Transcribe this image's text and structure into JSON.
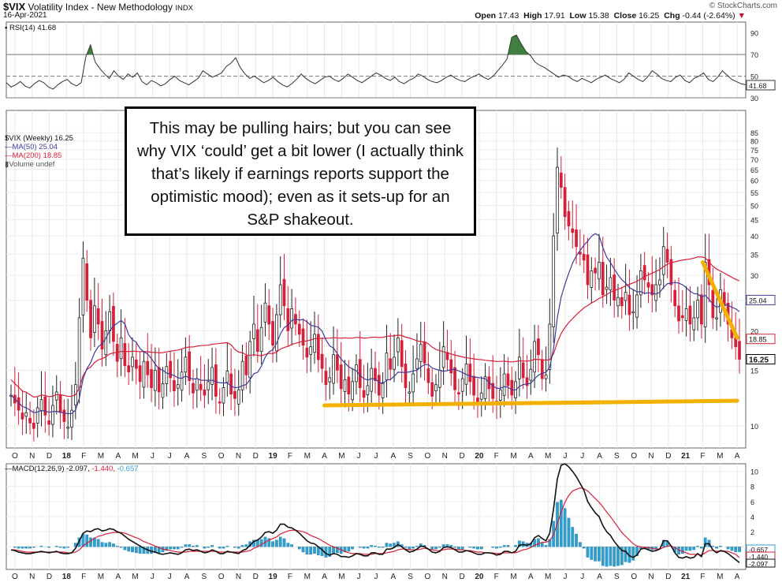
{
  "header": {
    "symbol": "$VIX",
    "name": "Volatility Index - New Methodology",
    "exchange": "INDX",
    "date": "16-Apr-2021",
    "brand": "© StockCharts.com",
    "open_label": "Open",
    "open": "17.43",
    "high_label": "High",
    "high": "17.91",
    "low_label": "Low",
    "low": "15.38",
    "close_label": "Close",
    "close": "16.25",
    "chg_label": "Chg",
    "chg": "-0.44 (-2.64%)",
    "colors": {
      "up": "#222222",
      "down": "#d6203a",
      "ma50": "#3c3ca0",
      "ma200": "#d6203a",
      "trend": "#f2b000",
      "rsi_fill": "#3f7f3f",
      "macd_hist": "#2f9fcf"
    }
  },
  "legends": {
    "rsi": "RSI(14) 41.68",
    "price": "$VIX (Weekly) 16.25",
    "ma50": "MA(50) 25.04",
    "ma200": "MA(200) 18.85",
    "volume": "Volume undef",
    "macd_prefix": "MACD(12,26,9)",
    "macd_v1": "-2.097,",
    "macd_v2": "-1.440,",
    "macd_v3": "-0.657"
  },
  "annotation": {
    "text": "This may be pulling hairs; but you can see why VIX ‘could’ get a bit lower (I actually think that’s likely if earnings reports support the optimistic mood); even as it sets-up for an S&P shakeout."
  },
  "chart_data": [
    {
      "type": "line",
      "panel": "rsi",
      "title": "RSI(14) 41.68",
      "ylim": [
        30,
        100
      ],
      "y_ticks": [
        "90",
        "70",
        "50",
        "30"
      ],
      "last_value": "41.68",
      "levels": [
        70,
        50,
        30
      ],
      "series": [
        {
          "values": [
            44,
            40,
            42,
            45,
            41,
            39,
            43,
            46,
            44,
            40,
            38,
            42,
            45,
            47,
            43,
            41,
            44,
            68,
            79,
            63,
            57,
            52,
            48,
            55,
            50,
            47,
            52,
            49,
            53,
            45,
            42,
            46,
            44,
            41,
            43,
            47,
            50,
            46,
            44,
            42,
            45,
            48,
            55,
            52,
            49,
            51,
            53,
            59,
            62,
            67,
            58,
            52,
            48,
            50,
            47,
            44,
            46,
            49,
            45,
            42,
            40,
            43,
            47,
            52,
            48,
            45,
            43,
            46,
            49,
            50,
            47,
            45,
            48,
            52,
            49,
            46,
            44,
            47,
            50,
            53,
            51,
            48,
            46,
            49,
            45,
            43,
            46,
            48,
            52,
            50,
            47,
            45,
            44,
            46,
            49,
            51,
            48,
            46,
            45,
            48,
            50,
            52,
            49,
            47,
            50,
            55,
            60,
            66,
            86,
            88,
            80,
            73,
            69,
            63,
            60,
            58,
            55,
            52,
            49,
            51,
            50,
            47,
            45,
            48,
            46,
            44,
            47,
            49,
            51,
            48,
            46,
            44,
            47,
            53,
            50,
            47,
            45,
            49,
            55,
            52,
            48,
            46,
            45,
            49,
            51,
            46,
            44,
            48,
            50,
            53,
            47,
            45,
            49,
            55,
            51,
            47,
            45,
            43,
            42
          ]
        }
      ]
    },
    {
      "type": "candlestick",
      "panel": "price",
      "title": "$VIX (Weekly) 16.25",
      "y_scale": "log",
      "ylim": [
        8.5,
        100
      ],
      "y_ticks": [
        "10",
        "15",
        "20",
        "25",
        "30",
        "35",
        "40",
        "45",
        "50",
        "55",
        "60",
        "65",
        "70",
        "75",
        "80",
        "85"
      ],
      "x_ticks": [
        "O",
        "N",
        "D",
        "18",
        "F",
        "M",
        "A",
        "M",
        "J",
        "J",
        "A",
        "S",
        "O",
        "N",
        "D",
        "19",
        "F",
        "M",
        "A",
        "M",
        "J",
        "J",
        "A",
        "S",
        "O",
        "N",
        "D",
        "20",
        "F",
        "M",
        "A",
        "M",
        "J",
        "J",
        "A",
        "S",
        "O",
        "N",
        "D",
        "21",
        "F",
        "M",
        "A"
      ],
      "close_series": [
        12.5,
        11.8,
        11.2,
        10.5,
        11.0,
        10.2,
        9.8,
        11.4,
        12.1,
        10.8,
        10.1,
        11.6,
        12.8,
        11.0,
        10.3,
        9.9,
        11.2,
        13.5,
        22.0,
        34.0,
        25.0,
        19.0,
        24.0,
        21.0,
        17.5,
        20.0,
        23.0,
        18.5,
        16.0,
        19.0,
        15.5,
        14.8,
        16.5,
        15.2,
        13.8,
        16.0,
        14.5,
        13.2,
        15.0,
        12.8,
        13.6,
        15.4,
        14.2,
        12.9,
        13.5,
        14.8,
        16.5,
        13.9,
        12.7,
        14.1,
        13.0,
        12.5,
        13.8,
        15.3,
        12.4,
        11.8,
        13.2,
        14.9,
        12.6,
        12.2,
        13.0,
        16.0,
        14.5,
        18.5,
        21.0,
        17.2,
        20.5,
        24.5,
        21.0,
        18.0,
        22.5,
        28.0,
        24.0,
        20.0,
        23.5,
        21.0,
        19.5,
        18.0,
        16.5,
        17.8,
        19.5,
        16.2,
        15.2,
        13.5,
        14.2,
        16.8,
        15.0,
        13.1,
        14.0,
        12.6,
        13.8,
        15.6,
        13.2,
        12.3,
        13.4,
        15.2,
        13.9,
        12.5,
        13.7,
        17.0,
        15.1,
        16.5,
        19.0,
        15.4,
        13.2,
        12.8,
        14.6,
        16.3,
        18.1,
        15.8,
        13.7,
        12.4,
        13.5,
        15.0,
        17.8,
        16.2,
        14.7,
        13.0,
        12.6,
        14.1,
        15.7,
        13.8,
        12.5,
        11.9,
        12.7,
        14.3,
        13.1,
        12.2,
        11.8,
        13.0,
        14.6,
        13.4,
        12.5,
        13.8,
        16.5,
        14.2,
        13.4,
        15.1,
        18.5,
        16.8,
        14.1,
        14.5,
        21.0,
        40.0,
        66.0,
        57.0,
        46.0,
        43.0,
        41.0,
        37.0,
        35.0,
        33.5,
        28.0,
        31.0,
        30.5,
        33.0,
        26.0,
        27.5,
        29.5,
        25.0,
        25.5,
        24.0,
        26.5,
        22.5,
        23.0,
        26.0,
        31.0,
        29.0,
        27.5,
        26.0,
        28.0,
        29.0,
        37.0,
        33.0,
        28.0,
        24.0,
        21.5,
        22.0,
        23.5,
        21.0,
        22.0,
        25.0,
        21.0,
        33.0,
        28.0,
        22.0,
        22.0,
        27.0,
        24.0,
        21.0,
        19.0,
        17.8,
        16.25
      ],
      "trendlines": [
        {
          "label": "support",
          "from": [
            "2019-04",
            11.6
          ],
          "to": [
            "2021-04",
            12.0
          ]
        },
        {
          "label": "downtrend",
          "from": [
            "2021-02",
            33.0
          ],
          "to": [
            "2021-04",
            19.0
          ]
        }
      ],
      "series": [
        {
          "name": "MA(50) 25.04",
          "last_value": "25.04"
        },
        {
          "name": "MA(200) 18.85",
          "last_value": "18.85"
        }
      ],
      "last_price_label": "16.25"
    },
    {
      "type": "line",
      "panel": "macd",
      "title": "MACD(12,26,9) -2.097, -1.440, -0.657",
      "ylim": [
        -3,
        11
      ],
      "y_ticks": [
        "10",
        "8",
        "6",
        "4",
        "2",
        "0"
      ],
      "last_labels": [
        "-0.657",
        "-1.440",
        "-2.097"
      ],
      "series": [
        {
          "name": "MACD",
          "values": [
            -0.4,
            -0.5,
            -0.7,
            -0.8,
            -0.9,
            -0.9,
            -0.8,
            -0.7,
            -0.6,
            -0.7,
            -0.8,
            -0.7,
            -0.6,
            -0.8,
            -0.9,
            -0.9,
            -0.8,
            -0.2,
            0.8,
            1.8,
            2.1,
            2.0,
            2.3,
            2.4,
            2.1,
            2.2,
            2.4,
            2.3,
            2.0,
            1.8,
            1.4,
            1.0,
            0.7,
            0.4,
            0.1,
            -0.2,
            -0.4,
            -0.6,
            -0.7,
            -0.9,
            -1.0,
            -0.9,
            -0.8,
            -0.9,
            -1.0,
            -0.8,
            -0.4,
            -0.3,
            -0.5,
            -0.4,
            -0.6,
            -0.8,
            -0.7,
            -0.4,
            -0.6,
            -0.9,
            -0.9,
            -0.6,
            -0.7,
            -0.8,
            -0.9,
            -0.5,
            -0.3,
            0.2,
            0.7,
            0.9,
            1.3,
            1.9,
            2.0,
            1.8,
            2.2,
            3.0,
            3.0,
            2.6,
            2.5,
            2.2,
            1.8,
            1.3,
            0.8,
            0.5,
            0.4,
            0.0,
            -0.4,
            -0.9,
            -1.1,
            -0.9,
            -1.0,
            -1.3,
            -1.3,
            -1.4,
            -1.2,
            -0.9,
            -1.0,
            -1.2,
            -1.2,
            -0.8,
            -0.8,
            -1.0,
            -1.0,
            -0.3,
            -0.3,
            -0.1,
            0.3,
            0.0,
            -0.4,
            -0.7,
            -0.6,
            -0.3,
            0.1,
            0.0,
            -0.3,
            -0.7,
            -0.8,
            -0.6,
            -0.1,
            0.0,
            -0.1,
            -0.4,
            -0.7,
            -0.7,
            -0.5,
            -0.6,
            -0.8,
            -1.0,
            -1.0,
            -0.8,
            -0.8,
            -0.9,
            -1.1,
            -1.0,
            -0.6,
            -0.6,
            -0.8,
            -0.6,
            0.2,
            0.3,
            0.2,
            0.4,
            1.2,
            1.5,
            1.1,
            0.8,
            1.8,
            5.0,
            9.0,
            10.8,
            11.0,
            10.6,
            10.0,
            9.3,
            8.4,
            7.5,
            6.0,
            5.2,
            4.5,
            4.0,
            2.8,
            2.0,
            1.5,
            0.7,
            0.1,
            -0.5,
            -0.6,
            -1.2,
            -1.4,
            -1.1,
            -0.3,
            -0.2,
            -0.4,
            -0.6,
            -0.5,
            -0.3,
            0.8,
            0.8,
            0.1,
            -0.8,
            -1.4,
            -1.5,
            -1.3,
            -1.5,
            -1.4,
            -0.9,
            -1.3,
            0.4,
            0.4,
            -0.4,
            -0.8,
            -0.5,
            -0.6,
            -0.9,
            -1.3,
            -1.7,
            -2.097
          ]
        },
        {
          "name": "Signal",
          "values": [
            -0.4,
            -0.4,
            -0.5,
            -0.6,
            -0.7,
            -0.7,
            -0.7,
            -0.7,
            -0.7,
            -0.7,
            -0.7,
            -0.7,
            -0.7,
            -0.7,
            -0.7,
            -0.8,
            -0.8,
            -0.7,
            -0.4,
            0.1,
            0.5,
            0.8,
            1.1,
            1.4,
            1.5,
            1.7,
            1.8,
            1.9,
            1.9,
            1.9,
            1.8,
            1.6,
            1.4,
            1.2,
            1.0,
            0.7,
            0.5,
            0.3,
            0.1,
            -0.1,
            -0.3,
            -0.4,
            -0.5,
            -0.6,
            -0.7,
            -0.7,
            -0.7,
            -0.6,
            -0.6,
            -0.6,
            -0.6,
            -0.6,
            -0.6,
            -0.6,
            -0.6,
            -0.7,
            -0.7,
            -0.7,
            -0.7,
            -0.7,
            -0.7,
            -0.7,
            -0.6,
            -0.5,
            -0.2,
            0.0,
            0.3,
            0.6,
            0.9,
            1.1,
            1.3,
            1.7,
            1.9,
            2.1,
            2.2,
            2.2,
            2.1,
            2.0,
            1.8,
            1.5,
            1.3,
            1.1,
            0.8,
            0.5,
            0.2,
            0.0,
            -0.2,
            -0.4,
            -0.6,
            -0.8,
            -0.9,
            -0.9,
            -0.9,
            -1.0,
            -1.0,
            -1.0,
            -0.9,
            -0.9,
            -0.9,
            -0.8,
            -0.7,
            -0.6,
            -0.4,
            -0.3,
            -0.3,
            -0.4,
            -0.4,
            -0.4,
            -0.3,
            -0.2,
            -0.3,
            -0.4,
            -0.5,
            -0.5,
            -0.4,
            -0.3,
            -0.3,
            -0.3,
            -0.4,
            -0.4,
            -0.5,
            -0.5,
            -0.6,
            -0.7,
            -0.7,
            -0.8,
            -0.8,
            -0.8,
            -0.9,
            -0.9,
            -0.8,
            -0.8,
            -0.8,
            -0.8,
            -0.6,
            -0.4,
            -0.3,
            -0.1,
            0.2,
            0.4,
            0.6,
            0.6,
            0.8,
            1.6,
            3.1,
            4.6,
            5.9,
            6.8,
            7.4,
            7.6,
            7.8,
            7.7,
            7.4,
            6.9,
            6.4,
            5.9,
            5.3,
            4.6,
            4.0,
            3.3,
            2.6,
            1.9,
            1.4,
            0.9,
            0.4,
            0.1,
            0.0,
            -0.1,
            -0.1,
            -0.2,
            -0.3,
            -0.3,
            -0.1,
            0.1,
            0.1,
            -0.1,
            -0.4,
            -0.6,
            -0.8,
            -1.0,
            -1.0,
            -1.0,
            -1.1,
            -0.8,
            -0.5,
            -0.5,
            -0.6,
            -0.6,
            -0.6,
            -0.6,
            -0.8,
            -1.0,
            -1.44
          ]
        }
      ]
    }
  ]
}
